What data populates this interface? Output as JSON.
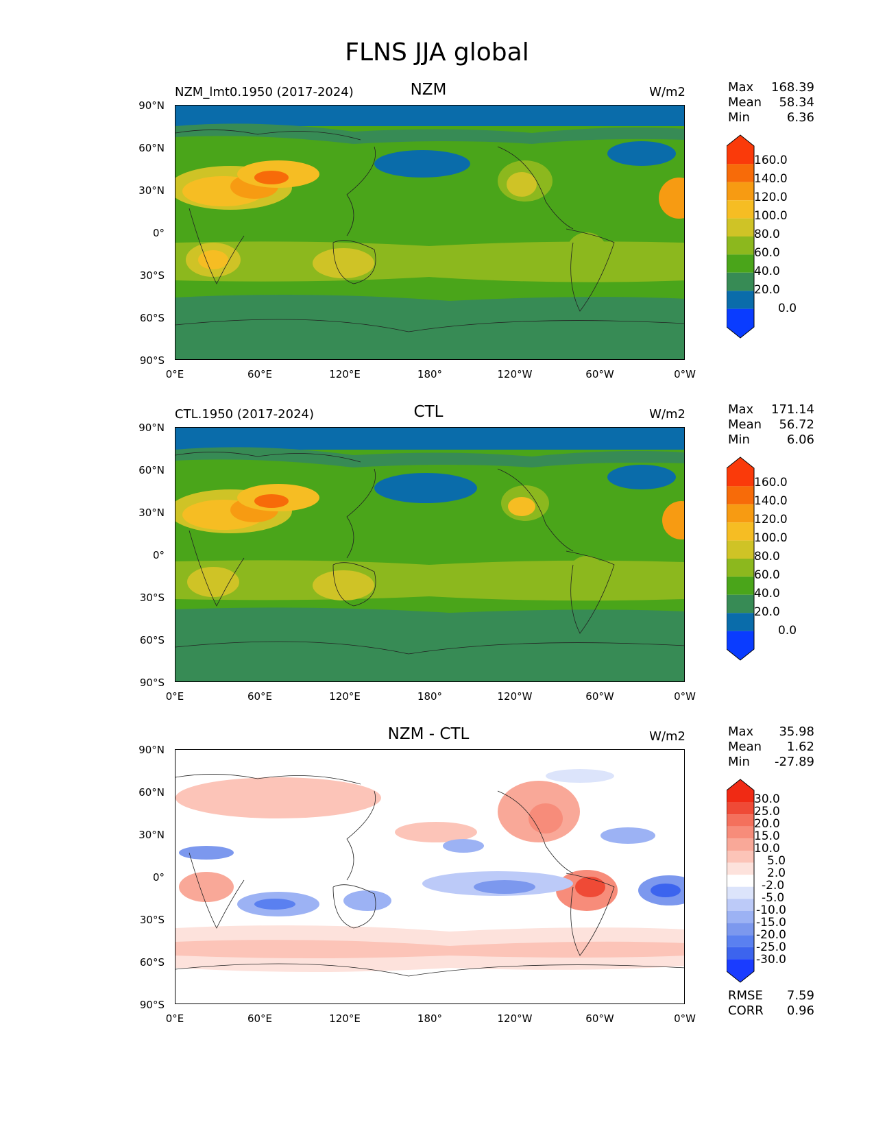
{
  "figure_title": "FLNS JJA global",
  "colors": {
    "abs": [
      "#0a3cff",
      "#0a6caa",
      "#378b55",
      "#4aa51a",
      "#8cb81e",
      "#cfc326",
      "#f6bd23",
      "#f79b12",
      "#f76b09",
      "#fa3a0a"
    ],
    "diff": [
      "#1a3cff",
      "#3c64ee",
      "#5a80f0",
      "#7c98ee",
      "#9cb2f4",
      "#bccaf8",
      "#dce4fb",
      "#ffffff",
      "#fde2dc",
      "#fcc4b8",
      "#f9a898",
      "#f78c7a",
      "#f4705c",
      "#ef4a36",
      "#f02a14"
    ]
  },
  "chart_data": [
    {
      "type": "heatmap",
      "name": "NZM",
      "left_title": "NZM_lmt0.1950 (2017-2024)",
      "center_title": "NZM",
      "units": "W/m2",
      "stats": {
        "max_label": "Max",
        "max": "168.39",
        "mean_label": "Mean",
        "mean": "58.34",
        "min_label": "Min",
        "min": "6.36"
      },
      "colorbar_ticks": [
        "160.0",
        "140.0",
        "120.0",
        "100.0",
        "80.0",
        "60.0",
        "40.0",
        "20.0",
        "0.0"
      ],
      "y_ticks": [
        "90°N",
        "60°N",
        "30°N",
        "0°",
        "30°S",
        "60°S",
        "90°S"
      ],
      "x_ticks": [
        "0°E",
        "60°E",
        "120°E",
        "180°",
        "120°W",
        "60°W",
        "0°W"
      ],
      "ylim": [
        -90,
        90
      ],
      "xlim": [
        0,
        360
      ]
    },
    {
      "type": "heatmap",
      "name": "CTL",
      "left_title": "CTL.1950 (2017-2024)",
      "center_title": "CTL",
      "units": "W/m2",
      "stats": {
        "max_label": "Max",
        "max": "171.14",
        "mean_label": "Mean",
        "mean": "56.72",
        "min_label": "Min",
        "min": "6.06"
      },
      "colorbar_ticks": [
        "160.0",
        "140.0",
        "120.0",
        "100.0",
        "80.0",
        "60.0",
        "40.0",
        "20.0",
        "0.0"
      ],
      "y_ticks": [
        "90°N",
        "60°N",
        "30°N",
        "0°",
        "30°S",
        "60°S",
        "90°S"
      ],
      "x_ticks": [
        "0°E",
        "60°E",
        "120°E",
        "180°",
        "120°W",
        "60°W",
        "0°W"
      ],
      "ylim": [
        -90,
        90
      ],
      "xlim": [
        0,
        360
      ]
    },
    {
      "type": "heatmap",
      "name": "DIFF",
      "left_title": "",
      "center_title": "NZM - CTL",
      "units": "W/m2",
      "stats": {
        "max_label": "Max",
        "max": "35.98",
        "mean_label": "Mean",
        "mean": "1.62",
        "min_label": "Min",
        "min": "-27.89"
      },
      "colorbar_ticks": [
        "30.0",
        "25.0",
        "20.0",
        "15.0",
        "10.0",
        "5.0",
        "2.0",
        "-2.0",
        "-5.0",
        "-10.0",
        "-15.0",
        "-20.0",
        "-25.0",
        "-30.0"
      ],
      "y_ticks": [
        "90°N",
        "60°N",
        "30°N",
        "0°",
        "30°S",
        "60°S",
        "90°S"
      ],
      "x_ticks": [
        "0°E",
        "60°E",
        "120°E",
        "180°",
        "120°W",
        "60°W",
        "0°W"
      ],
      "ylim": [
        -90,
        90
      ],
      "xlim": [
        0,
        360
      ],
      "rmse_label": "RMSE",
      "rmse": "7.59",
      "corr_label": "CORR",
      "corr": "0.96"
    }
  ]
}
